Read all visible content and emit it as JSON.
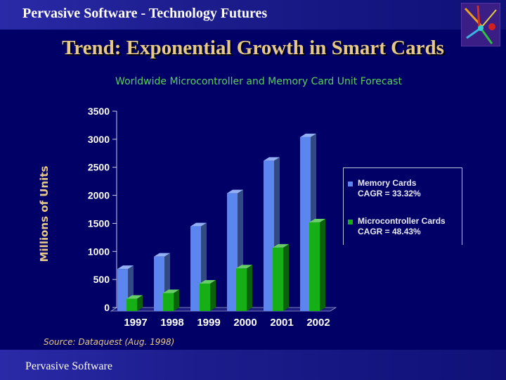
{
  "header": {
    "title": "Pervasive Software - Technology Futures"
  },
  "slide": {
    "title": "Trend:  Exponential Growth in Smart Cards"
  },
  "chart_data": {
    "type": "bar",
    "title": "Worldwide Microcontroller and Memory Card Unit Forecast",
    "xlabel": "",
    "ylabel": "Millions of Units",
    "categories": [
      "1997",
      "1998",
      "1999",
      "2000",
      "2001",
      "2002"
    ],
    "series": [
      {
        "name": "Memory Cards",
        "cagr": "CAGR = 33.32%",
        "color": "#5b86f0",
        "values": [
          750,
          970,
          1510,
          2100,
          2680,
          3100
        ]
      },
      {
        "name": "Microcontroller Cards",
        "cagr": "CAGR = 48.43%",
        "color": "#16b016",
        "values": [
          220,
          320,
          490,
          760,
          1130,
          1580
        ]
      }
    ],
    "ylim": [
      0,
      3500
    ],
    "yticks": [
      0,
      500,
      1000,
      1500,
      2000,
      2500,
      3000,
      3500
    ],
    "ytick_labels": [
      "0",
      "500",
      "1000",
      "1500",
      "2000",
      "2500",
      "3000",
      "3500"
    ],
    "legend_position": "right",
    "grid": false
  },
  "source": "Source: Dataquest (Aug. 1998)",
  "footer": {
    "text": "Pervasive Software"
  },
  "colors": {
    "background": "#000066",
    "title": "#e6c888",
    "subtitle": "#58d058",
    "axis_text": "#ffffff"
  }
}
